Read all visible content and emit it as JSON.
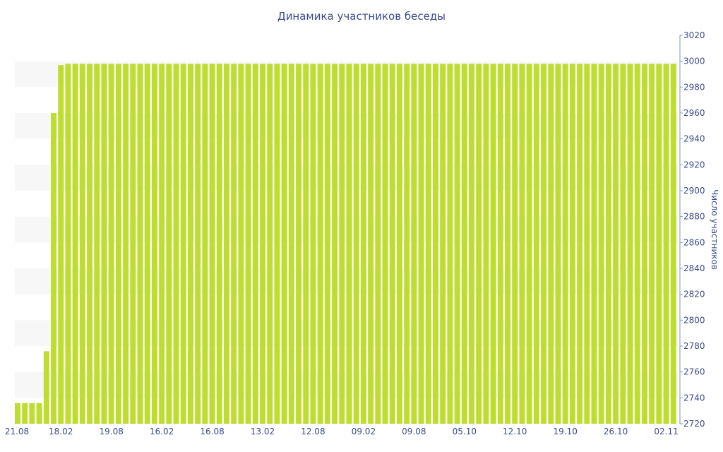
{
  "chart_data": {
    "type": "bar",
    "title": "Динамика участников беседы",
    "xlabel": "",
    "ylabel": "Число участников",
    "ylim": [
      2720,
      3020
    ],
    "yticks": [
      2720,
      2740,
      2760,
      2780,
      2800,
      2820,
      2840,
      2860,
      2880,
      2900,
      2920,
      2940,
      2960,
      2980,
      3000,
      3020
    ],
    "x_tick_labels": [
      "21.08",
      "18.02",
      "19.08",
      "16.02",
      "16.08",
      "13.02",
      "12.08",
      "09.02",
      "09.08",
      "05.10",
      "12.10",
      "19.10",
      "26.10",
      "02.11"
    ],
    "x_tick_bar_index": [
      0,
      6,
      13,
      20,
      27,
      34,
      41,
      48,
      55,
      62,
      69,
      76,
      83,
      90
    ],
    "values": [
      2736,
      2736,
      2736,
      2736,
      2776,
      2960,
      2997,
      2998,
      2998,
      2998,
      2998,
      2998,
      2998,
      2998,
      2998,
      2998,
      2998,
      2998,
      2998,
      2998,
      2998,
      2998,
      2998,
      2998,
      2998,
      2998,
      2998,
      2998,
      2998,
      2998,
      2998,
      2998,
      2998,
      2998,
      2998,
      2998,
      2998,
      2998,
      2998,
      2998,
      2998,
      2998,
      2998,
      2998,
      2998,
      2998,
      2998,
      2998,
      2998,
      2998,
      2998,
      2998,
      2998,
      2998,
      2998,
      2998,
      2998,
      2998,
      2998,
      2998,
      2998,
      2998,
      2998,
      2998,
      2998,
      2998,
      2998,
      2998,
      2998,
      2998,
      2998,
      2998,
      2998,
      2998,
      2998,
      2998,
      2998,
      2998,
      2998,
      2998,
      2998,
      2998,
      2998,
      2998,
      2998,
      2998,
      2998,
      2998,
      2998,
      2998,
      2998,
      2998
    ],
    "y_axis_position": "right",
    "bar_color": "#bedd2f",
    "grid": "alternating bands"
  }
}
